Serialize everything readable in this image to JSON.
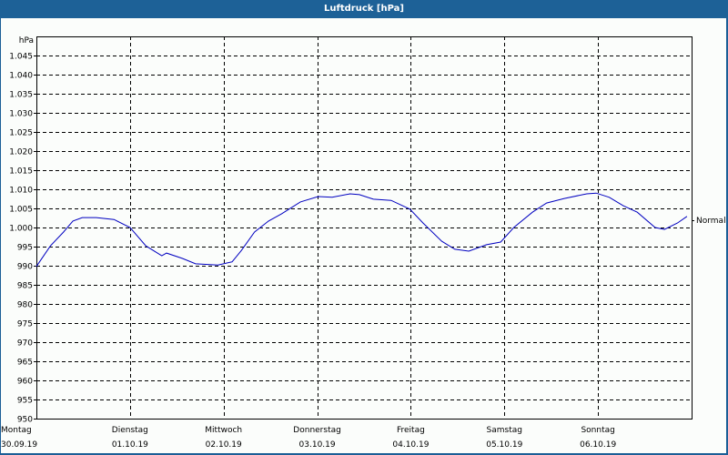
{
  "window": {
    "title": "Luftdruck [hPa]"
  },
  "colors": {
    "titlebar": "#1d6197",
    "frame": "#1b5e96",
    "background": "#fbfdfb",
    "line": "#0000c0",
    "grid": "#000000"
  },
  "chart_data": {
    "type": "line",
    "title": "Luftdruck [hPa]",
    "xlabel": "",
    "ylabel": "hPa",
    "ylim": [
      950,
      1050
    ],
    "yticks": [
      950,
      955,
      960,
      965,
      970,
      975,
      980,
      985,
      990,
      995,
      1000,
      1005,
      1010,
      1015,
      1020,
      1025,
      1030,
      1035,
      1040,
      1045
    ],
    "ytick_labels": [
      "950",
      "955",
      "960",
      "965",
      "970",
      "975",
      "980",
      "985",
      "990",
      "995",
      "1.000",
      "1.005",
      "1.010",
      "1.015",
      "1.020",
      "1.025",
      "1.030",
      "1.035",
      "1.040",
      "1.045"
    ],
    "xlim": [
      0,
      7
    ],
    "x_unit": "days since 30.09.19 00:00",
    "xticks": [
      {
        "x": 0,
        "day": "Montag",
        "date": "30.09.19"
      },
      {
        "x": 1,
        "day": "Dienstag",
        "date": "01.10.19"
      },
      {
        "x": 2,
        "day": "Mittwoch",
        "date": "02.10.19"
      },
      {
        "x": 3,
        "day": "Donnerstag",
        "date": "03.10.19"
      },
      {
        "x": 4,
        "day": "Freitag",
        "date": "04.10.19"
      },
      {
        "x": 5,
        "day": "Samstag",
        "date": "05.10.19"
      },
      {
        "x": 6,
        "day": "Sonntag",
        "date": "06.10.19"
      }
    ],
    "grid": true,
    "reference_line": {
      "label": "Normal",
      "value": 1002
    },
    "series": [
      {
        "name": "Luftdruck",
        "x": [
          0.0,
          0.15,
          0.29,
          0.39,
          0.49,
          0.64,
          0.83,
          1.0,
          1.17,
          1.34,
          1.39,
          1.56,
          1.7,
          1.94,
          2.09,
          2.19,
          2.33,
          2.48,
          2.62,
          2.82,
          3.01,
          3.16,
          3.35,
          3.45,
          3.6,
          3.79,
          3.99,
          4.13,
          4.33,
          4.47,
          4.62,
          4.81,
          4.96,
          5.1,
          5.3,
          5.45,
          5.64,
          5.88,
          5.98,
          6.12,
          6.27,
          6.42,
          6.61,
          6.71,
          6.85,
          6.95
        ],
        "values": [
          989.8,
          995.2,
          998.8,
          1001.7,
          1002.6,
          1002.6,
          1002.1,
          1000.0,
          995.2,
          992.6,
          993.3,
          991.9,
          990.5,
          990.2,
          991.0,
          994.0,
          998.8,
          1001.7,
          1003.6,
          1006.7,
          1008.1,
          1007.9,
          1008.8,
          1008.6,
          1007.4,
          1007.1,
          1004.8,
          1001.2,
          996.4,
          994.3,
          993.8,
          995.5,
          996.2,
          1000.0,
          1004.0,
          1006.4,
          1007.6,
          1008.8,
          1009.0,
          1007.9,
          1005.7,
          1004.0,
          1000.0,
          999.5,
          1001.2,
          1002.9
        ]
      }
    ]
  }
}
